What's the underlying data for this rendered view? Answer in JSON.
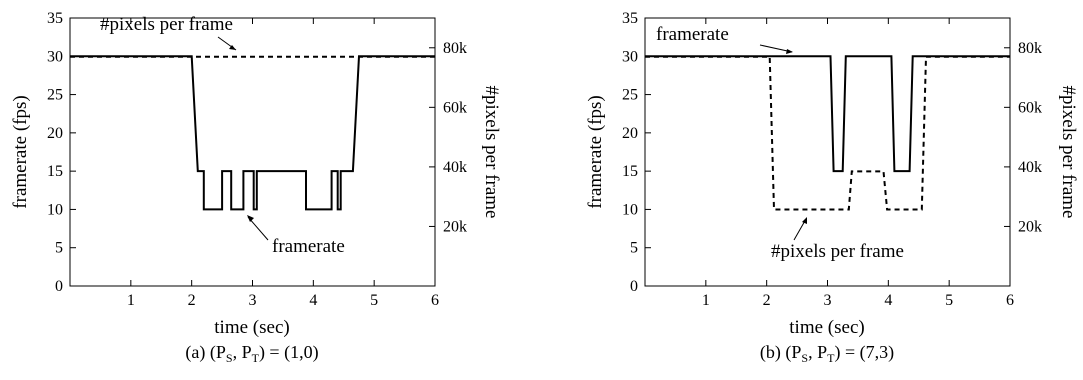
{
  "chart_data": [
    {
      "type": "line",
      "caption_prefix": "(a) (P",
      "caption_sub1": "S",
      "caption_mid": ", P",
      "caption_sub2": "T",
      "caption_suffix": ") = (1,0)",
      "xlabel": "time (sec)",
      "ylabel": "framerate (fps)",
      "y2label": "#pixels per frame",
      "xlim": [
        0,
        6
      ],
      "ylim": [
        0,
        35
      ],
      "y2lim": [
        0,
        90000
      ],
      "x_ticks": [
        1,
        2,
        3,
        4,
        5,
        6
      ],
      "y_ticks": [
        0,
        5,
        10,
        15,
        20,
        25,
        30,
        35
      ],
      "y2_ticks": [
        {
          "value": 20000,
          "label": "20k"
        },
        {
          "value": 40000,
          "label": "40k"
        },
        {
          "value": 60000,
          "label": "60k"
        },
        {
          "value": 80000,
          "label": "80k"
        }
      ],
      "series": [
        {
          "name": "framerate",
          "axis": "left",
          "style": "solid",
          "x": [
            0,
            2.0,
            2.1,
            2.15,
            2.15,
            2.2,
            2.2,
            2.5,
            2.5,
            2.65,
            2.65,
            2.7,
            2.7,
            2.85,
            2.85,
            2.9,
            2.9,
            3.02,
            3.02,
            3.07,
            3.07,
            3.12,
            3.12,
            3.88,
            3.88,
            4.3,
            4.3,
            4.4,
            4.4,
            4.45,
            4.45,
            4.55,
            4.55,
            4.65,
            4.75,
            6
          ],
          "y": [
            30,
            30,
            15,
            15,
            15,
            15,
            10,
            10,
            15,
            15,
            10,
            10,
            10,
            10,
            15,
            15,
            15,
            15,
            10,
            10,
            15,
            15,
            15,
            15,
            10,
            10,
            15,
            15,
            10,
            10,
            15,
            15,
            15,
            15,
            30,
            30
          ]
        },
        {
          "name": "#pixels per frame",
          "axis": "right",
          "style": "dashed",
          "x": [
            0,
            6
          ],
          "y": [
            77000,
            77000
          ]
        }
      ],
      "annotations": [
        {
          "text": "#pixels per frame",
          "points_to": "dashed line"
        },
        {
          "text": "framerate",
          "points_to": "solid line"
        }
      ]
    },
    {
      "type": "line",
      "caption_prefix": "(b) (P",
      "caption_sub1": "S",
      "caption_mid": ", P",
      "caption_sub2": "T",
      "caption_suffix": ") = (7,3)",
      "xlabel": "time (sec)",
      "ylabel": "framerate (fps)",
      "y2label": "#pixels per frame",
      "xlim": [
        0,
        6
      ],
      "ylim": [
        0,
        35
      ],
      "y2lim": [
        0,
        90000
      ],
      "x_ticks": [
        1,
        2,
        3,
        4,
        5,
        6
      ],
      "y_ticks": [
        0,
        5,
        10,
        15,
        20,
        25,
        30,
        35
      ],
      "y2_ticks": [
        {
          "value": 20000,
          "label": "20k"
        },
        {
          "value": 40000,
          "label": "40k"
        },
        {
          "value": 60000,
          "label": "60k"
        },
        {
          "value": 80000,
          "label": "80k"
        }
      ],
      "series": [
        {
          "name": "framerate",
          "axis": "left",
          "style": "solid",
          "x": [
            0,
            3.05,
            3.1,
            3.25,
            3.3,
            4.05,
            4.1,
            4.35,
            4.4,
            6
          ],
          "y": [
            30,
            30,
            15,
            15,
            30,
            30,
            15,
            15,
            30,
            30
          ]
        },
        {
          "name": "#pixels per frame",
          "axis": "right",
          "style": "dashed",
          "x": [
            0,
            2.05,
            2.12,
            3.35,
            3.4,
            3.92,
            3.98,
            4.55,
            4.62,
            6
          ],
          "y": [
            77000,
            77000,
            25700,
            25700,
            38500,
            38500,
            25700,
            25700,
            77000,
            77000
          ]
        }
      ],
      "annotations": [
        {
          "text": "framerate",
          "points_to": "solid line"
        },
        {
          "text": "#pixels per frame",
          "points_to": "dashed line"
        }
      ]
    }
  ]
}
